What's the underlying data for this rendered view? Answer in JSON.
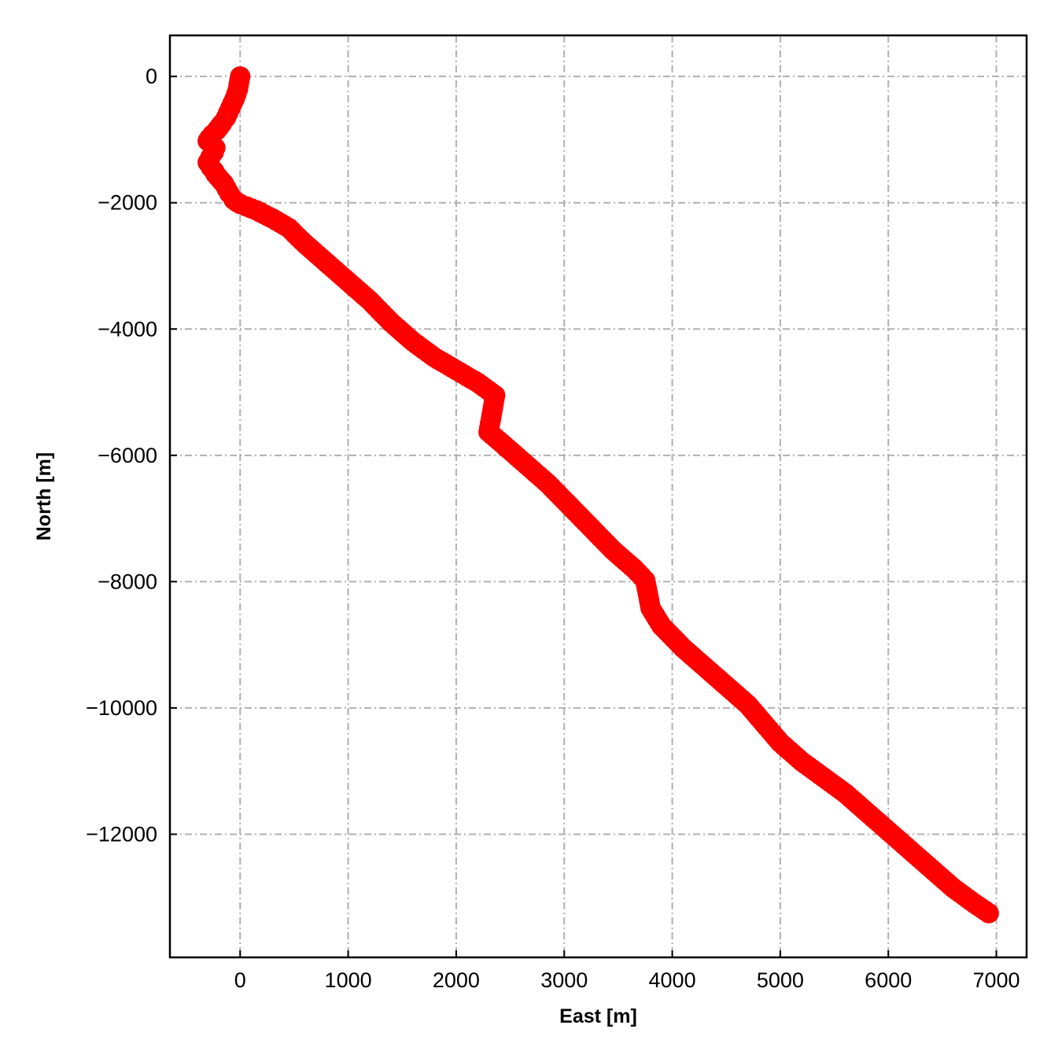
{
  "chart_data": {
    "type": "line",
    "title": "",
    "xlabel": "East [m]",
    "ylabel": "North [m]",
    "xlim": [
      -650,
      7280
    ],
    "ylim": [
      -13950,
      650
    ],
    "x_ticks": [
      0,
      1000,
      2000,
      3000,
      4000,
      5000,
      6000,
      7000
    ],
    "x_tick_labels": [
      "0",
      "1000",
      "2000",
      "3000",
      "4000",
      "5000",
      "6000",
      "7000"
    ],
    "y_ticks": [
      0,
      -2000,
      -4000,
      -6000,
      -8000,
      -10000,
      -12000
    ],
    "y_tick_labels": [
      "0",
      "−2000",
      "−4000",
      "−6000",
      "−8000",
      "−10000",
      "−12000"
    ],
    "grid": true,
    "grid_style": "dashdot",
    "legend": "none",
    "colors": {
      "series": "#ff0000",
      "grid": "#b0b0b0",
      "frame": "#000000"
    },
    "series": [
      {
        "marker": "circle",
        "x": [
          0,
          -20,
          -50,
          -90,
          -130,
          -170,
          -215,
          -255,
          -285,
          -300,
          -260,
          -230,
          -245,
          -275,
          -300,
          -270,
          -240,
          -230,
          -150,
          -100,
          -60,
          -30,
          0,
          60,
          150,
          300,
          450,
          600,
          800,
          1000,
          1200,
          1400,
          1600,
          1800,
          2000,
          2200,
          2360,
          2300,
          2450,
          2650,
          2850,
          3050,
          3250,
          3450,
          3650,
          3750,
          3800,
          3900,
          4100,
          4300,
          4500,
          4700,
          4850,
          5000,
          5200,
          5400,
          5600,
          5800,
          6000,
          6200,
          6400,
          6600,
          6800,
          6930
        ],
        "y": [
          0,
          -200,
          -350,
          -500,
          -650,
          -750,
          -850,
          -920,
          -980,
          -1020,
          -1080,
          -1130,
          -1200,
          -1280,
          -1360,
          -1440,
          -1500,
          -1540,
          -1700,
          -1850,
          -1950,
          -1990,
          -2020,
          -2060,
          -2120,
          -2250,
          -2400,
          -2650,
          -2950,
          -3250,
          -3550,
          -3900,
          -4200,
          -4450,
          -4650,
          -4850,
          -5050,
          -5630,
          -5850,
          -6150,
          -6450,
          -6800,
          -7150,
          -7500,
          -7800,
          -7980,
          -8420,
          -8700,
          -9050,
          -9350,
          -9650,
          -9950,
          -10250,
          -10550,
          -10850,
          -11100,
          -11350,
          -11650,
          -11950,
          -12250,
          -12550,
          -12850,
          -13100,
          -13250
        ]
      }
    ]
  }
}
